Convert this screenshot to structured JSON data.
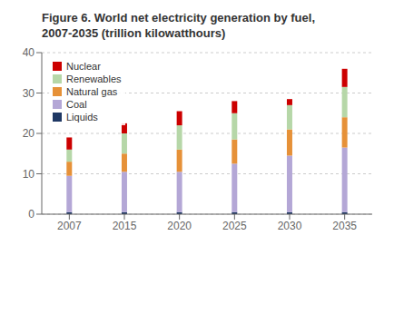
{
  "chart_data": {
    "type": "bar",
    "title": "Figure 6. World net electricity generation by fuel,\n2007-2035 (trillion kilowatthours)",
    "stacked": true,
    "categories": [
      "2007",
      "2015",
      "2020",
      "2025",
      "2030",
      "2035"
    ],
    "series": [
      {
        "name": "Liquids",
        "color": "#1F3864",
        "values": [
          0.5,
          0.5,
          0.5,
          0.5,
          0.5,
          0.5
        ]
      },
      {
        "name": "Coal",
        "color": "#B4A7D6",
        "values": [
          9.0,
          10.0,
          10.0,
          12.0,
          14.0,
          16.0
        ]
      },
      {
        "name": "Natural gas",
        "color": "#E69138",
        "values": [
          3.5,
          4.5,
          5.5,
          6.0,
          6.5,
          7.5
        ]
      },
      {
        "name": "Renewables",
        "color": "#B6D7A8",
        "values": [
          3.0,
          5.0,
          6.0,
          6.5,
          6.0,
          7.5
        ]
      },
      {
        "name": "Nuclear",
        "color": "#CC0000",
        "values": [
          3.0,
          2.5,
          3.5,
          3.0,
          1.5,
          4.5
        ]
      }
    ],
    "ylim": [
      0,
      40
    ],
    "yticks": [
      0,
      10,
      20,
      30,
      40
    ],
    "grid": true,
    "legend": "upper left"
  }
}
